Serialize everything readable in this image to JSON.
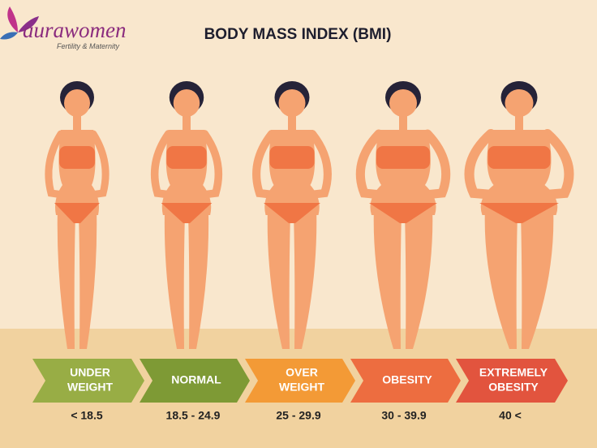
{
  "logo": {
    "name": "aurawomen",
    "tagline": "Fertility & Maternity"
  },
  "title": "BODY MASS INDEX (BMI)",
  "categories": [
    {
      "label": [
        "UNDER",
        "WEIGHT"
      ],
      "range": "< 18.5"
    },
    {
      "label": [
        "NORMAL"
      ],
      "range": "18.5 - 24.9"
    },
    {
      "label": [
        "OVER",
        "WEIGHT"
      ],
      "range": "25 - 29.9"
    },
    {
      "label": [
        "OBESITY"
      ],
      "range": "30 - 39.9"
    },
    {
      "label": [
        "EXTREMELY",
        "OBESITY"
      ],
      "range": "40 <"
    }
  ]
}
